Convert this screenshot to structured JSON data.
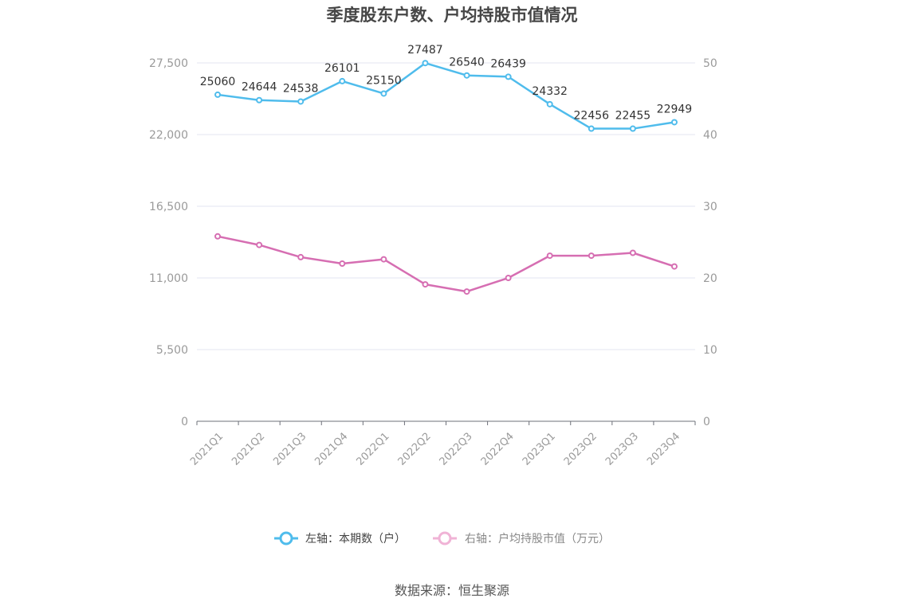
{
  "chart_data": {
    "type": "line",
    "title": "季度股东户数、户均持股市值情况",
    "categories": [
      "2021Q1",
      "2021Q2",
      "2021Q3",
      "2021Q4",
      "2022Q1",
      "2022Q2",
      "2022Q3",
      "2022Q4",
      "2023Q1",
      "2023Q2",
      "2023Q3",
      "2023Q4"
    ],
    "series": [
      {
        "name": "左轴：本期数（户）",
        "axis": "left",
        "color": "#4fbcec",
        "values": [
          25060,
          24644,
          24538,
          26101,
          25150,
          27487,
          26540,
          26439,
          24332,
          22456,
          22455,
          22949
        ],
        "labels": [
          "25060",
          "24644",
          "24538",
          "26101",
          "25150",
          "27487",
          "26540",
          "26439",
          "24332",
          "22456",
          "22455",
          "22949"
        ]
      },
      {
        "name": "右轴：户均持股市值（万元）",
        "axis": "right",
        "color": "#d66eb2",
        "values": [
          25.8,
          24.6,
          22.9,
          22.0,
          22.6,
          19.1,
          18.1,
          20.0,
          23.1,
          23.1,
          23.5,
          21.6
        ]
      }
    ],
    "y_left": {
      "min": 0,
      "max": 27500,
      "ticks": [
        0,
        5500,
        11000,
        16500,
        22000,
        27500
      ],
      "tick_labels": [
        "0",
        "5,500",
        "11,000",
        "16,500",
        "22,000",
        "27,500"
      ]
    },
    "y_right": {
      "min": 0,
      "max": 50,
      "ticks": [
        0,
        10,
        20,
        30,
        40,
        50
      ],
      "tick_labels": [
        "0",
        "10",
        "20",
        "30",
        "40",
        "50"
      ]
    },
    "grid": true,
    "legend_position": "bottom",
    "source": "数据来源：恒生聚源"
  }
}
